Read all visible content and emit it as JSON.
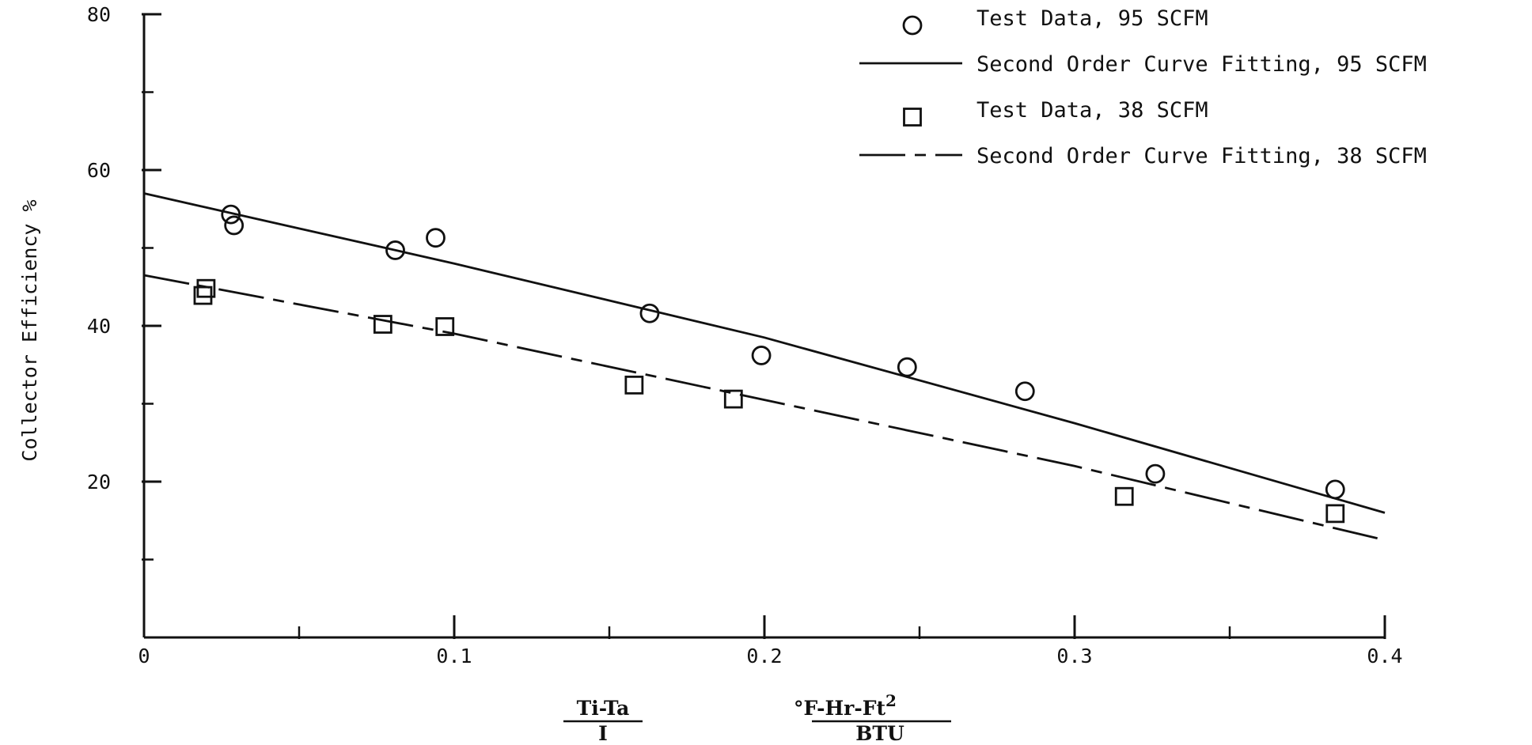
{
  "chart_data": {
    "type": "scatter",
    "title": "",
    "ylabel": "Collector Efficiency %",
    "xlabel": {
      "fraction_numerator": "Ti-Ta",
      "fraction_denominator": "I",
      "unit_numerator": "°F-Hr-Ft",
      "unit_numerator_sup": "2",
      "unit_denominator": "BTU"
    },
    "xlim": [
      0,
      0.4
    ],
    "ylim": [
      0,
      80
    ],
    "x_ticks": [
      0,
      0.1,
      0.2,
      0.3,
      0.4
    ],
    "x_tick_labels": [
      "0",
      "0.1",
      "0.2",
      "0.3",
      "0.4"
    ],
    "x_minor_ticks": [
      0.05,
      0.15,
      0.25,
      0.35
    ],
    "y_ticks": [
      20,
      40,
      60,
      80
    ],
    "y_tick_labels": [
      "20",
      "40",
      "60",
      "80"
    ],
    "y_minor_ticks": [
      10,
      30,
      50,
      70
    ],
    "grid": false,
    "legend_position": "top-right",
    "series": [
      {
        "name": "Test Data, 95 SCFM",
        "kind": "scatter",
        "marker": "circle",
        "points": [
          [
            0.028,
            54.3
          ],
          [
            0.029,
            52.9
          ],
          [
            0.081,
            49.7
          ],
          [
            0.094,
            51.3
          ],
          [
            0.163,
            41.6
          ],
          [
            0.199,
            36.2
          ],
          [
            0.246,
            34.7
          ],
          [
            0.284,
            31.6
          ],
          [
            0.326,
            21.0
          ],
          [
            0.384,
            19.0
          ]
        ]
      },
      {
        "name": "Second Order Curve Fitting, 95 SCFM",
        "kind": "line",
        "style": "solid",
        "points": [
          [
            0,
            57.0
          ],
          [
            0.1,
            48.0
          ],
          [
            0.2,
            38.5
          ],
          [
            0.3,
            27.5
          ],
          [
            0.4,
            16.0
          ]
        ]
      },
      {
        "name": "Test Data, 38 SCFM",
        "kind": "scatter",
        "marker": "square",
        "points": [
          [
            0.019,
            43.9
          ],
          [
            0.02,
            44.8
          ],
          [
            0.077,
            40.2
          ],
          [
            0.097,
            39.9
          ],
          [
            0.158,
            32.4
          ],
          [
            0.19,
            30.6
          ],
          [
            0.316,
            18.1
          ],
          [
            0.384,
            15.9
          ]
        ]
      },
      {
        "name": "Second Order Curve Fitting, 38 SCFM",
        "kind": "line",
        "style": "dash-dot",
        "points": [
          [
            0,
            46.5
          ],
          [
            0.1,
            39.0
          ],
          [
            0.2,
            30.5
          ],
          [
            0.3,
            22.0
          ],
          [
            0.4,
            12.5
          ]
        ]
      }
    ]
  }
}
